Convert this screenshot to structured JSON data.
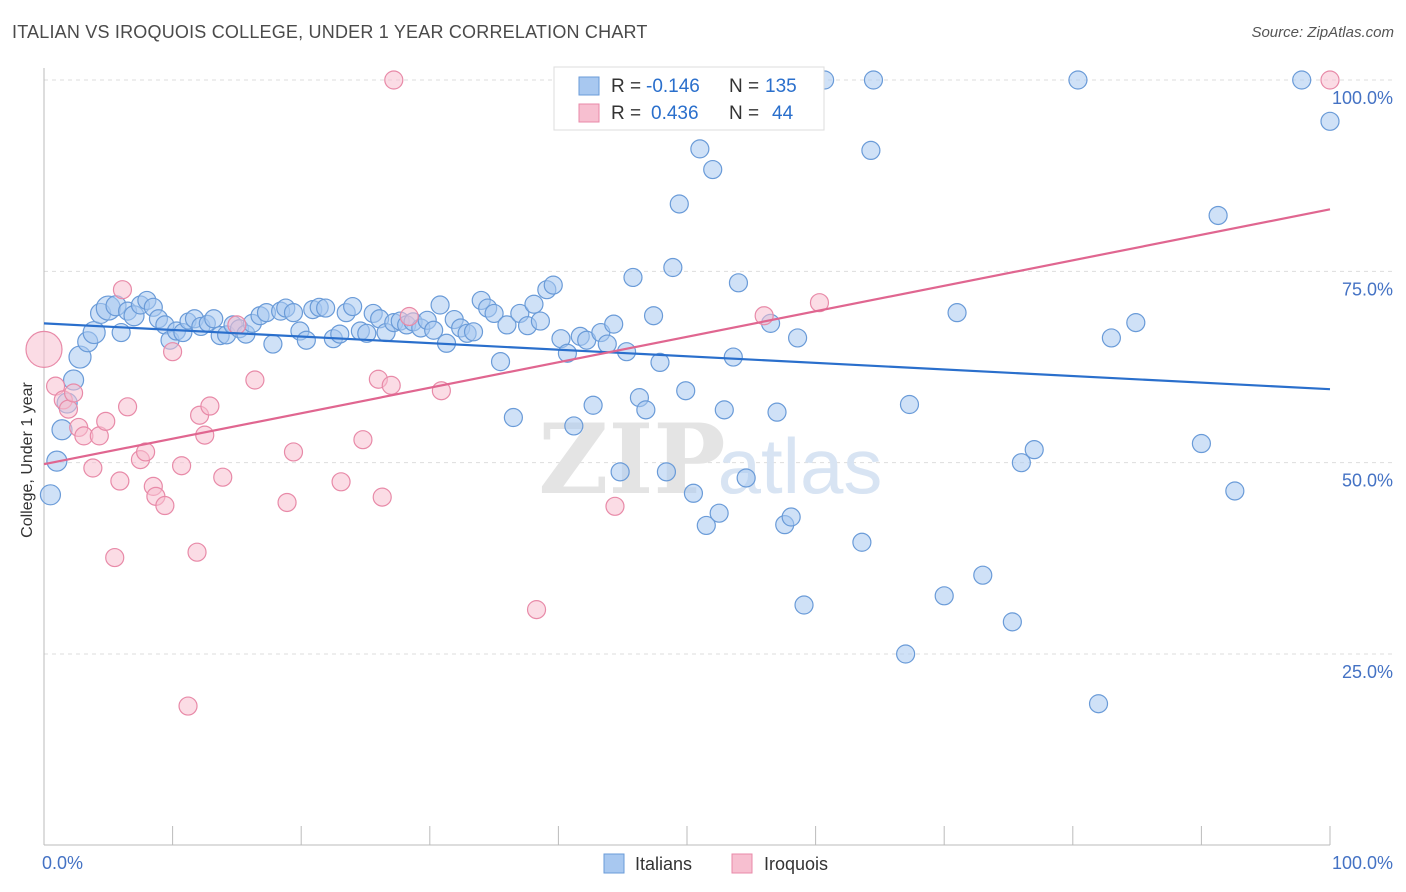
{
  "title": "ITALIAN VS IROQUOIS COLLEGE, UNDER 1 YEAR CORRELATION CHART",
  "source": "Source: ZipAtlas.com",
  "watermark": {
    "zip": "ZIP",
    "atlas": "atlas"
  },
  "colors": {
    "italians_fill": "#a8c8f0",
    "italians_stroke": "#6a9bd8",
    "italians_line": "#2a6fcc",
    "iroquois_fill": "#f7bfd0",
    "iroquois_stroke": "#e88aa8",
    "iroquois_line": "#e06690",
    "tick_label": "#4472c4",
    "grid": "#dddddd"
  },
  "legend": {
    "rows": [
      {
        "r_label": "R =",
        "r_value": "-0.146",
        "n_label": "N =",
        "n_value": "135"
      },
      {
        "r_label": "R =",
        "r_value": "0.436",
        "n_label": "N =",
        "n_value": "44"
      }
    ]
  },
  "chart_data": {
    "type": "scatter",
    "title": "ITALIAN VS IROQUOIS COLLEGE, UNDER 1 YEAR CORRELATION CHART",
    "xlabel": "",
    "ylabel": "College, Under 1 year",
    "xlim": [
      0,
      100
    ],
    "ylim": [
      0,
      105
    ],
    "x_tick_labels": [
      "0.0%",
      "100.0%"
    ],
    "y_ticks": [
      25,
      50,
      75,
      100
    ],
    "y_tick_labels": [
      "25.0%",
      "50.0%",
      "75.0%",
      "100.0%"
    ],
    "grid": true,
    "legend_position": "top-center",
    "series": [
      {
        "name": "Italians",
        "r": -0.146,
        "n": 135,
        "trend": [
          [
            0,
            68.2
          ],
          [
            100,
            59.6
          ]
        ],
        "points": [
          [
            0.5,
            45.8,
            10
          ],
          [
            1.0,
            50.2,
            10
          ],
          [
            1.4,
            54.3,
            10
          ],
          [
            1.8,
            57.8,
            10
          ],
          [
            2.3,
            60.8,
            10
          ],
          [
            2.8,
            63.8,
            11
          ],
          [
            3.4,
            65.8,
            10
          ],
          [
            3.9,
            67.0,
            11
          ],
          [
            4.4,
            69.5,
            10
          ],
          [
            5.0,
            70.2,
            12
          ],
          [
            5.6,
            70.5,
            10
          ],
          [
            6.0,
            67.0,
            9
          ],
          [
            6.5,
            69.8,
            9
          ],
          [
            7.0,
            69.2,
            10
          ],
          [
            7.5,
            70.6,
            9
          ],
          [
            8.0,
            71.2,
            9
          ],
          [
            8.5,
            70.3,
            9
          ],
          [
            8.9,
            68.8,
            9
          ],
          [
            9.4,
            68.0,
            9
          ],
          [
            9.8,
            66.0,
            9
          ],
          [
            10.3,
            67.2,
            9
          ],
          [
            10.8,
            67.0,
            9
          ],
          [
            11.2,
            68.5,
            8
          ],
          [
            11.7,
            68.8,
            9
          ],
          [
            12.2,
            67.8,
            9
          ],
          [
            12.7,
            68.2,
            8
          ],
          [
            13.2,
            68.8,
            9
          ],
          [
            13.7,
            66.6,
            9
          ],
          [
            14.2,
            66.7,
            9
          ],
          [
            14.7,
            68.0,
            9
          ],
          [
            15.2,
            67.5,
            9
          ],
          [
            15.7,
            66.8,
            9
          ],
          [
            16.2,
            68.2,
            9
          ],
          [
            16.8,
            69.2,
            9
          ],
          [
            17.3,
            69.6,
            9
          ],
          [
            17.8,
            65.5,
            9
          ],
          [
            18.4,
            69.8,
            9
          ],
          [
            18.8,
            70.2,
            9
          ],
          [
            19.4,
            69.6,
            9
          ],
          [
            19.9,
            67.2,
            9
          ],
          [
            20.4,
            66.0,
            9
          ],
          [
            20.9,
            70.0,
            9
          ],
          [
            21.4,
            70.3,
            9
          ],
          [
            21.9,
            70.2,
            9
          ],
          [
            22.5,
            66.2,
            9
          ],
          [
            23.0,
            66.8,
            9
          ],
          [
            23.5,
            69.6,
            9
          ],
          [
            24.0,
            70.4,
            9
          ],
          [
            24.6,
            67.2,
            9
          ],
          [
            25.1,
            66.9,
            9
          ],
          [
            25.6,
            69.5,
            9
          ],
          [
            26.1,
            68.8,
            9
          ],
          [
            26.6,
            67.0,
            9
          ],
          [
            27.2,
            68.3,
            9
          ],
          [
            27.7,
            68.5,
            9
          ],
          [
            28.2,
            68.0,
            9
          ],
          [
            28.7,
            68.4,
            9
          ],
          [
            29.3,
            67.6,
            9
          ],
          [
            29.8,
            68.6,
            9
          ],
          [
            30.3,
            67.3,
            9
          ],
          [
            30.8,
            70.6,
            9
          ],
          [
            31.3,
            65.6,
            9
          ],
          [
            31.9,
            68.7,
            9
          ],
          [
            32.4,
            67.6,
            9
          ],
          [
            32.9,
            66.9,
            9
          ],
          [
            33.4,
            67.1,
            9
          ],
          [
            34.0,
            71.2,
            9
          ],
          [
            34.5,
            70.2,
            9
          ],
          [
            35.0,
            69.5,
            9
          ],
          [
            35.5,
            63.2,
            9
          ],
          [
            36.0,
            68.0,
            9
          ],
          [
            36.5,
            55.9,
            9
          ],
          [
            37.0,
            69.5,
            9
          ],
          [
            37.6,
            67.9,
            9
          ],
          [
            38.1,
            70.7,
            9
          ],
          [
            38.6,
            68.5,
            9
          ],
          [
            39.1,
            72.6,
            9
          ],
          [
            39.6,
            73.2,
            9
          ],
          [
            40.2,
            66.2,
            9
          ],
          [
            40.7,
            64.3,
            9
          ],
          [
            41.2,
            54.8,
            9
          ],
          [
            41.7,
            66.5,
            9
          ],
          [
            42.2,
            66.0,
            9
          ],
          [
            42.7,
            57.5,
            9
          ],
          [
            43.3,
            67.0,
            9
          ],
          [
            43.8,
            65.5,
            9
          ],
          [
            44.3,
            68.1,
            9
          ],
          [
            44.8,
            48.8,
            9
          ],
          [
            45.3,
            64.5,
            9
          ],
          [
            45.8,
            74.2,
            9
          ],
          [
            46.3,
            58.5,
            9
          ],
          [
            46.8,
            56.9,
            9
          ],
          [
            47.4,
            69.2,
            9
          ],
          [
            47.9,
            63.1,
            9
          ],
          [
            48.4,
            48.8,
            9
          ],
          [
            48.9,
            75.5,
            9
          ],
          [
            49.4,
            83.8,
            9
          ],
          [
            49.9,
            59.4,
            9
          ],
          [
            50.5,
            46.0,
            9
          ],
          [
            51.0,
            91.0,
            9
          ],
          [
            51.5,
            41.8,
            9
          ],
          [
            52.0,
            88.3,
            9
          ],
          [
            52.5,
            43.4,
            9
          ],
          [
            52.9,
            56.9,
            9
          ],
          [
            53.6,
            63.8,
            9
          ],
          [
            54.0,
            73.5,
            9
          ],
          [
            54.6,
            48.0,
            9
          ],
          [
            56.0,
            97.8,
            9
          ],
          [
            56.5,
            68.2,
            9
          ],
          [
            57.0,
            56.6,
            9
          ],
          [
            57.6,
            41.9,
            9
          ],
          [
            58.1,
            42.9,
            9
          ],
          [
            58.6,
            66.3,
            9
          ],
          [
            59.1,
            31.4,
            9
          ],
          [
            60.7,
            100.0,
            9
          ],
          [
            63.6,
            39.6,
            9
          ],
          [
            64.3,
            90.8,
            9
          ],
          [
            64.5,
            100.0,
            9
          ],
          [
            67.0,
            25.0,
            9
          ],
          [
            67.3,
            57.6,
            9
          ],
          [
            70.0,
            32.6,
            9
          ],
          [
            71.0,
            69.6,
            9
          ],
          [
            73.0,
            35.3,
            9
          ],
          [
            75.3,
            29.2,
            9
          ],
          [
            76.0,
            50.0,
            9
          ],
          [
            77.0,
            51.7,
            9
          ],
          [
            80.4,
            100.0,
            9
          ],
          [
            82.0,
            18.5,
            9
          ],
          [
            83.0,
            66.3,
            9
          ],
          [
            84.9,
            68.3,
            9
          ],
          [
            90.0,
            52.5,
            9
          ],
          [
            91.3,
            82.3,
            9
          ],
          [
            92.6,
            46.3,
            9
          ],
          [
            100.0,
            94.6,
            9
          ],
          [
            97.8,
            100.0,
            9
          ]
        ]
      },
      {
        "name": "Iroquois",
        "r": 0.436,
        "n": 44,
        "trend": [
          [
            0,
            49.8
          ],
          [
            100,
            83.1
          ]
        ],
        "points": [
          [
            0.0,
            64.8,
            18
          ],
          [
            0.9,
            60.0,
            9
          ],
          [
            1.5,
            58.2,
            9
          ],
          [
            1.9,
            57.0,
            9
          ],
          [
            2.3,
            59.1,
            9
          ],
          [
            2.7,
            54.6,
            9
          ],
          [
            3.1,
            53.5,
            9
          ],
          [
            3.8,
            49.3,
            9
          ],
          [
            4.3,
            53.5,
            9
          ],
          [
            4.8,
            55.4,
            9
          ],
          [
            5.5,
            37.6,
            9
          ],
          [
            5.9,
            47.6,
            9
          ],
          [
            6.1,
            72.6,
            9
          ],
          [
            6.5,
            57.3,
            9
          ],
          [
            7.5,
            50.4,
            9
          ],
          [
            7.9,
            51.4,
            9
          ],
          [
            8.5,
            46.9,
            9
          ],
          [
            8.7,
            45.6,
            9
          ],
          [
            9.4,
            44.4,
            9
          ],
          [
            10.0,
            64.5,
            9
          ],
          [
            10.7,
            49.6,
            9
          ],
          [
            11.2,
            18.2,
            9
          ],
          [
            11.9,
            38.3,
            9
          ],
          [
            12.1,
            56.2,
            9
          ],
          [
            12.5,
            53.6,
            9
          ],
          [
            12.9,
            57.4,
            9
          ],
          [
            13.9,
            48.1,
            9
          ],
          [
            15.0,
            68.0,
            9
          ],
          [
            16.4,
            60.8,
            9
          ],
          [
            18.9,
            44.8,
            9
          ],
          [
            19.4,
            51.4,
            9
          ],
          [
            23.1,
            47.5,
            9
          ],
          [
            24.8,
            53.0,
            9
          ],
          [
            26.0,
            60.9,
            9
          ],
          [
            26.3,
            45.5,
            9
          ],
          [
            27.0,
            60.1,
            9
          ],
          [
            27.2,
            100.0,
            9
          ],
          [
            28.4,
            69.1,
            9
          ],
          [
            30.9,
            59.4,
            9
          ],
          [
            38.3,
            30.8,
            9
          ],
          [
            44.4,
            44.3,
            9
          ],
          [
            56.0,
            69.2,
            9
          ],
          [
            60.3,
            70.9,
            9
          ],
          [
            100.0,
            100.0,
            9
          ]
        ]
      }
    ]
  }
}
